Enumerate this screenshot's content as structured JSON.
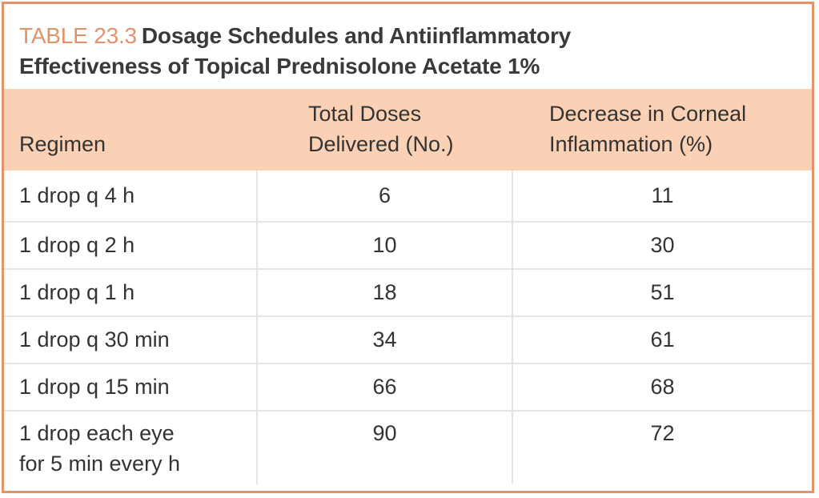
{
  "table": {
    "label": "TABLE 23.3",
    "title_line1": "Dosage Schedules and Antiinflammatory",
    "title_line2": "Effectiveness of Topical Prednisolone Acetate 1%",
    "headers": {
      "regimen": "Regimen",
      "doses_line1": "Total Doses",
      "doses_line2": "Delivered (No.)",
      "decrease_line1": "Decrease in Corneal",
      "decrease_line2": "Inflammation (%)"
    },
    "rows": [
      {
        "regimen": "1 drop q 4 h",
        "doses": "6",
        "decrease": "11"
      },
      {
        "regimen": "1 drop q 2 h",
        "doses": "10",
        "decrease": "30"
      },
      {
        "regimen": "1 drop q 1 h",
        "doses": "18",
        "decrease": "51"
      },
      {
        "regimen": "1 drop q 30 min",
        "doses": "34",
        "decrease": "61"
      },
      {
        "regimen": "1 drop q 15 min",
        "doses": "66",
        "decrease": "68"
      },
      {
        "regimen_line1": "1 drop each eye",
        "regimen_line2": "for 5 min every h",
        "doses": "90",
        "decrease": "72"
      }
    ],
    "colors": {
      "border": "#e2956b",
      "label": "#e0926a",
      "header_bg": "#fbd1b5"
    }
  }
}
